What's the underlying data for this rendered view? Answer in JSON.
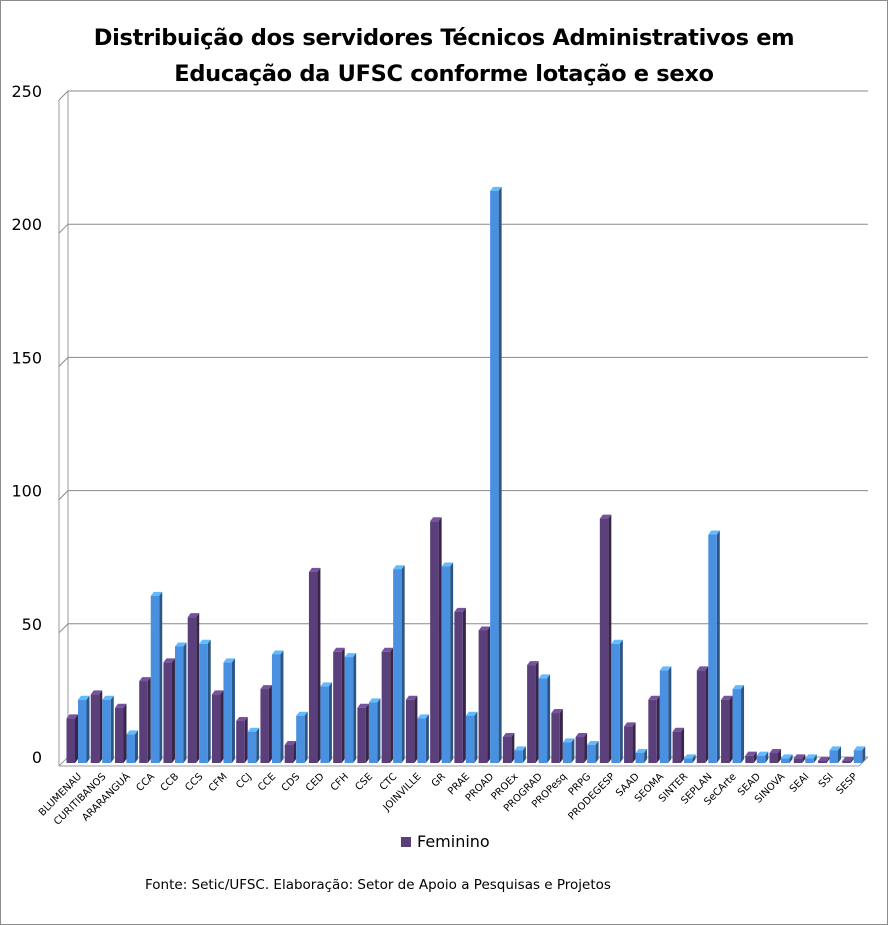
{
  "chart_data": {
    "type": "bar",
    "title": "Distribuição dos servidores Técnicos Administrativos em Educação da UFSC conforme lotação e sexo",
    "ylim": [
      0,
      250
    ],
    "yticks": [
      0,
      50,
      100,
      150,
      200,
      250
    ],
    "grid": true,
    "legend": {
      "position": "bottom",
      "entries": [
        "Feminino"
      ]
    },
    "categories": [
      "BLUMENAU",
      "CURITIBANOS",
      "ARARANGUÁ",
      "CCA",
      "CCB",
      "CCS",
      "CFM",
      "CCJ",
      "CCE",
      "CDS",
      "CED",
      "CFH",
      "CSE",
      "CTC",
      "JOINVILLE",
      "GR",
      "PRAE",
      "PROAD",
      "PROEx",
      "PROGRAD",
      "PROPesq",
      "PRPG",
      "PRODEGESP",
      "SAAD",
      "SEOMA",
      "SINTER",
      "SEPLAN",
      "SeCArte",
      "SEAD",
      "SINOVA",
      "SEAI",
      "SSI",
      "SESP"
    ],
    "series": [
      {
        "name": "Feminino",
        "color": "#5b3f7a",
        "values": [
          16,
          25,
          20,
          30,
          37,
          54,
          25,
          15,
          27,
          6,
          71,
          41,
          20,
          41,
          23,
          90,
          56,
          49,
          9,
          36,
          18,
          9,
          91,
          13,
          23,
          11,
          34,
          23,
          2,
          3,
          1,
          0,
          0
        ]
      },
      {
        "color": "#4a90e0",
        "values": [
          23,
          23,
          10,
          62,
          43,
          44,
          37,
          11,
          40,
          17,
          28,
          39,
          22,
          72,
          16,
          73,
          17,
          214,
          4,
          31,
          7,
          6,
          44,
          3,
          34,
          1,
          85,
          27,
          2,
          1,
          1,
          4,
          4
        ]
      }
    ]
  },
  "source_note": "Fonte: Setic/UFSC. Elaboração: Setor de Apoio a Pesquisas e Projetos"
}
